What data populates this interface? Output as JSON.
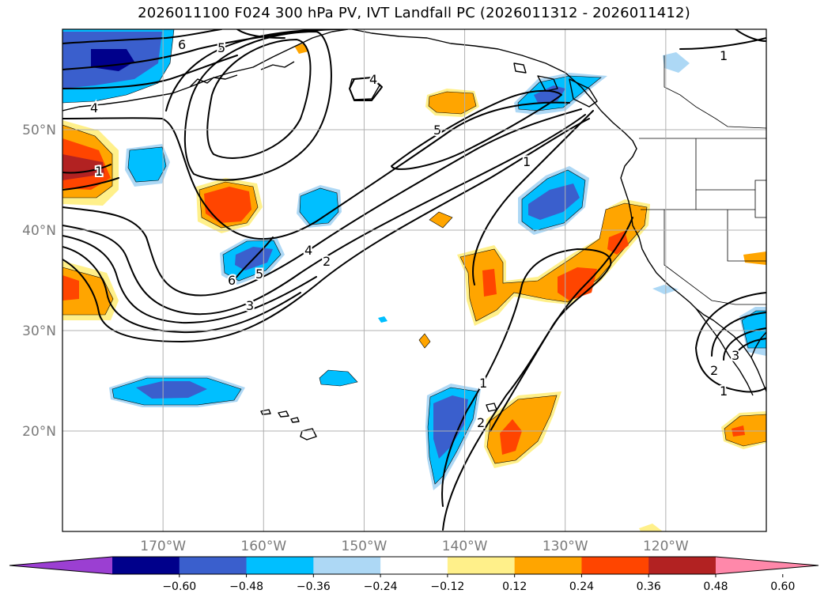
{
  "title": "2026011100 F024 300 hPa PV, IVT Landfall PC (2026011312 - 2026011412)",
  "map": {
    "lon_range": [
      -180,
      -110
    ],
    "lat_range": [
      10,
      60
    ],
    "lat_ticks": [
      {
        "value": 20,
        "label": "20°N"
      },
      {
        "value": 30,
        "label": "30°N"
      },
      {
        "value": 40,
        "label": "40°N"
      },
      {
        "value": 50,
        "label": "50°N"
      }
    ],
    "lon_ticks": [
      {
        "value": -170,
        "label": "170°W"
      },
      {
        "value": -160,
        "label": "160°W"
      },
      {
        "value": -150,
        "label": "150°W"
      },
      {
        "value": -140,
        "label": "140°W"
      },
      {
        "value": -130,
        "label": "130°W"
      },
      {
        "value": -120,
        "label": "120°W"
      }
    ],
    "gridlines": true
  },
  "colorbar": {
    "ticks": [
      "−0.60",
      "−0.48",
      "−0.36",
      "−0.24",
      "−0.12",
      "0.12",
      "0.24",
      "0.36",
      "0.48",
      "0.60"
    ],
    "colors": [
      "#9b3fd2",
      "#00008b",
      "#3a5fcd",
      "#00bfff",
      "#add8f5",
      "#ffffff",
      "#fff08a",
      "#ffa500",
      "#ff4500",
      "#b22222",
      "#ff88aa"
    ],
    "extend": "both"
  },
  "contour_labels": [
    "6",
    "5",
    "4",
    "4",
    "1",
    "5",
    "1",
    "4",
    "2",
    "5",
    "6",
    "3",
    "1",
    "1",
    "2",
    "3",
    "2",
    "1"
  ]
}
